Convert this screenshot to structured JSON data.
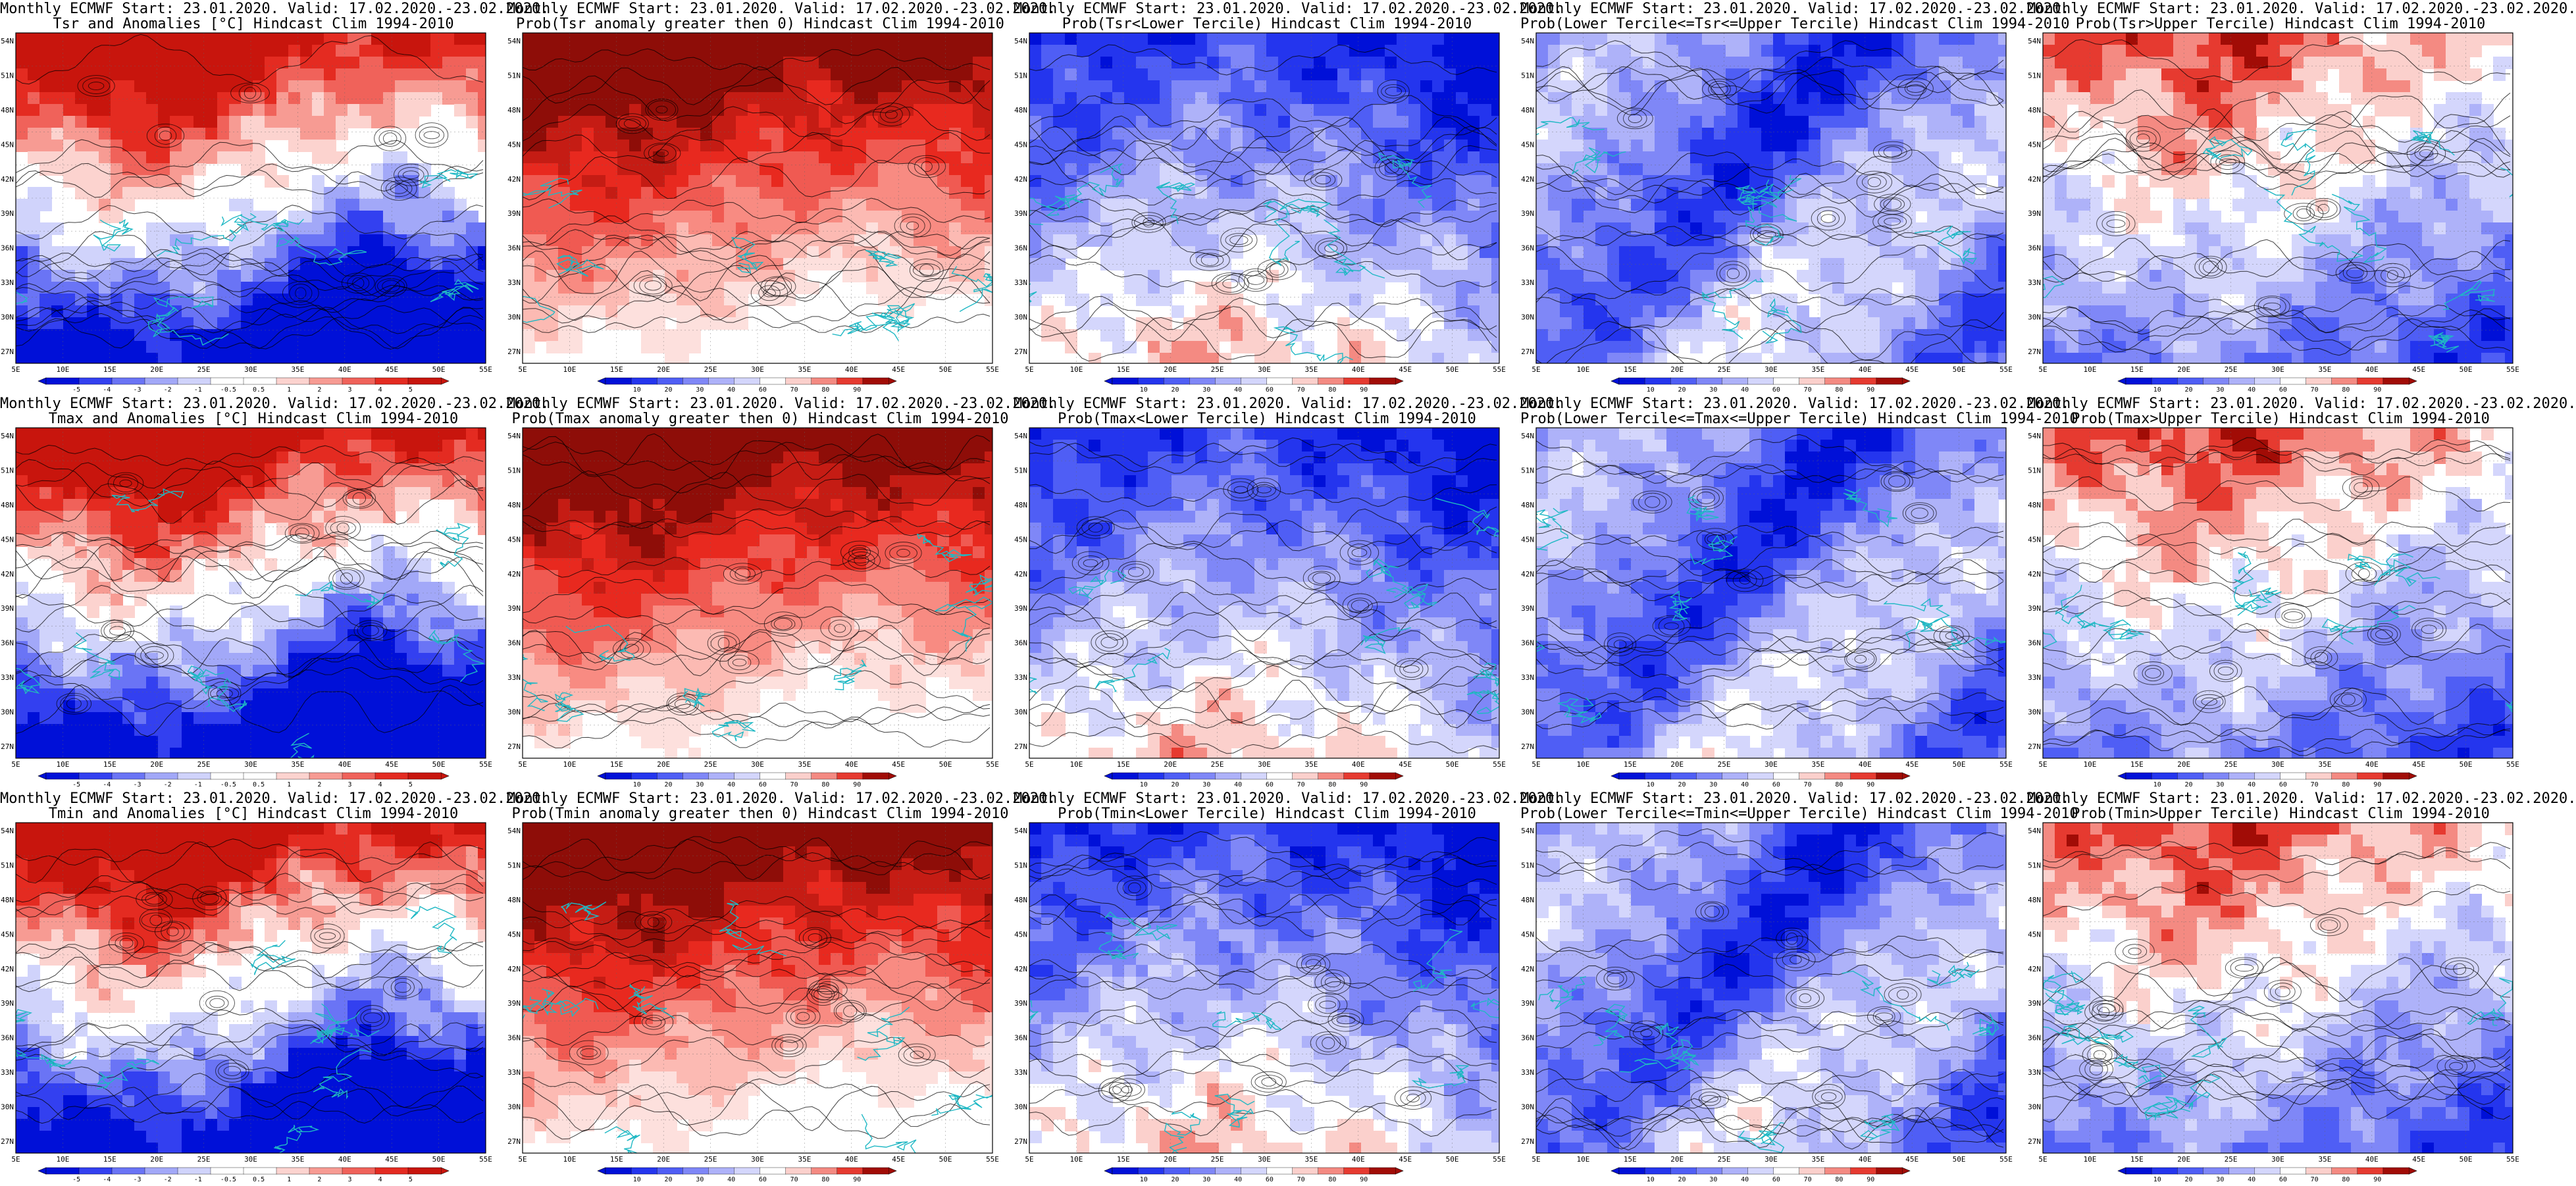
{
  "colors": {
    "warm": [
      "#ffffff",
      "#fde0dd",
      "#fcbab3",
      "#f88b82",
      "#f05a52",
      "#e8291f",
      "#c51c14",
      "#8e0d08"
    ],
    "cool": [
      "#0010d8",
      "#2435ee",
      "#4f5ef5",
      "#7f87f7",
      "#aeb2f9",
      "#d4d6fc",
      "#ffffff",
      "#fbd0cc",
      "#f48a82",
      "#e63a30",
      "#a10c06"
    ],
    "anom": [
      "#0010d8",
      "#3340f0",
      "#6a74f5",
      "#a2a8f8",
      "#d0d3fb",
      "#ffffff",
      "#ffffff",
      "#fcd3cf",
      "#f79b93",
      "#f0625a",
      "#e42b21",
      "#c8150d"
    ],
    "contour": "#000000",
    "coast": "#1fb8c4"
  },
  "map": {
    "lat_labels": [
      "54N",
      "51N",
      "48N",
      "45N",
      "42N",
      "39N",
      "36N",
      "33N",
      "30N",
      "27N"
    ],
    "lon_labels": [
      "5E",
      "10E",
      "15E",
      "20E",
      "25E",
      "30E",
      "35E",
      "40E",
      "45E",
      "50E",
      "55E"
    ]
  },
  "colorbars": {
    "anom_ticks": [
      "-5",
      "-4",
      "-3",
      "-2",
      "-1",
      "-0.5",
      "0.5",
      "1",
      "2",
      "3",
      "4",
      "5"
    ],
    "prob_ticks": [
      "10",
      "20",
      "30",
      "40",
      "60",
      "70",
      "80",
      "90"
    ]
  },
  "panels": [
    {
      "line1": "Monthly ECMWF Start: 23.01.2020. Valid: 17.02.2020.-23.02.2020.",
      "line2": "Tsr and Anomalies [°C] Hindcast Clim 1994-2010",
      "kind": "anom"
    },
    {
      "line1": "Monthly ECMWF Start: 23.01.2020. Valid: 17.02.2020.-23.02.2020.",
      "line2": "Prob(Tsr anomaly greater then 0) Hindcast Clim 1994-2010",
      "kind": "pos"
    },
    {
      "line1": "Monthly ECMWF Start: 23.01.2020. Valid: 17.02.2020.-23.02.2020.",
      "line2": "Prob(Tsr<Lower Tercile) Hindcast Clim 1994-2010",
      "kind": "lower"
    },
    {
      "line1": "Monthly ECMWF Start: 23.01.2020. Valid: 17.02.2020.-23.02.2020.",
      "line2": "Prob(Lower Tercile<=Tsr<=Upper Tercile) Hindcast Clim 1994-2010",
      "kind": "mid"
    },
    {
      "line1": "Monthly ECMWF Start: 23.01.2020. Valid: 17.02.2020.-23.02.2020.",
      "line2": "Prob(Tsr>Upper Tercile) Hindcast Clim 1994-2010",
      "kind": "upper"
    },
    {
      "line1": "Monthly ECMWF Start: 23.01.2020. Valid: 17.02.2020.-23.02.2020.",
      "line2": "Tmax and Anomalies [°C] Hindcast Clim 1994-2010",
      "kind": "anom"
    },
    {
      "line1": "Monthly ECMWF Start: 23.01.2020. Valid: 17.02.2020.-23.02.2020.",
      "line2": "Prob(Tmax anomaly greater then 0) Hindcast Clim 1994-2010",
      "kind": "pos"
    },
    {
      "line1": "Monthly ECMWF Start: 23.01.2020. Valid: 17.02.2020.-23.02.2020.",
      "line2": "Prob(Tmax<Lower Tercile) Hindcast Clim 1994-2010",
      "kind": "lower"
    },
    {
      "line1": "Monthly ECMWF Start: 23.01.2020. Valid: 17.02.2020.-23.02.2020.",
      "line2": "Prob(Lower Tercile<=Tmax<=Upper Tercile) Hindcast Clim 1994-2010",
      "kind": "mid"
    },
    {
      "line1": "Monthly ECMWF Start: 23.01.2020. Valid: 17.02.2020.-23.02.2020.",
      "line2": "Prob(Tmax>Upper Tercile) Hindcast Clim 1994-2010",
      "kind": "upper"
    },
    {
      "line1": "Monthly ECMWF Start: 23.01.2020. Valid: 17.02.2020.-23.02.2020.",
      "line2": "Tmin and Anomalies [°C] Hindcast Clim 1994-2010",
      "kind": "anom"
    },
    {
      "line1": "Monthly ECMWF Start: 23.01.2020. Valid: 17.02.2020.-23.02.2020.",
      "line2": "Prob(Tmin anomaly greater then 0) Hindcast Clim 1994-2010",
      "kind": "pos"
    },
    {
      "line1": "Monthly ECMWF Start: 23.01.2020. Valid: 17.02.2020.-23.02.2020.",
      "line2": "Prob(Tmin<Lower Tercile) Hindcast Clim 1994-2010",
      "kind": "lower"
    },
    {
      "line1": "Monthly ECMWF Start: 23.01.2020. Valid: 17.02.2020.-23.02.2020.",
      "line2": "Prob(Lower Tercile<=Tmin<=Upper Tercile) Hindcast Clim 1994-2010",
      "kind": "mid"
    },
    {
      "line1": "Monthly ECMWF Start: 23.01.2020. Valid: 17.02.2020.-23.02.2020.",
      "line2": "Prob(Tmin>Upper Tercile) Hindcast Clim 1994-2010",
      "kind": "upper"
    }
  ]
}
